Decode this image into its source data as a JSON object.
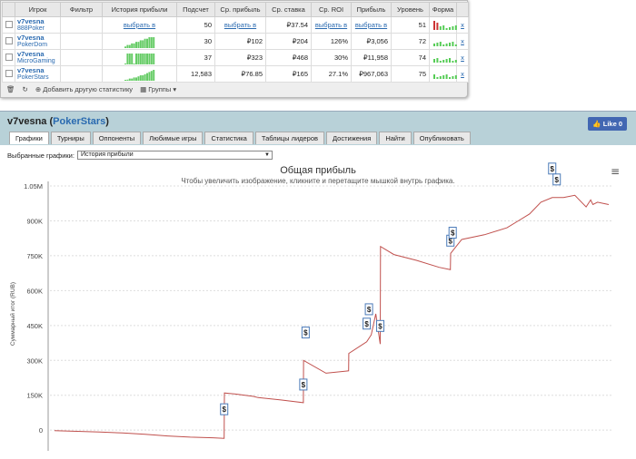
{
  "table": {
    "headers": [
      "Игрок",
      "Фильтр",
      "История прибыли",
      "Подсчет",
      "Ср. прибыль",
      "Ср. ставка",
      "Ср. ROI",
      "Прибыль",
      "Уровень",
      "Форма"
    ],
    "rows": [
      {
        "player": "v7vesna",
        "room": "888Poker",
        "filter": "выбрать в",
        "count": "50",
        "avg_profit": "",
        "avg_stake": "₽37.54",
        "roi": "",
        "profit": "",
        "level": "51",
        "history": [
          0,
          0,
          0,
          0,
          0,
          0,
          0,
          0,
          0,
          0,
          0,
          0,
          0,
          0
        ],
        "form": "red-green",
        "remove": "x"
      },
      {
        "player": "v7vesna",
        "room": "PokerDom",
        "filter": "",
        "count": "30",
        "avg_profit": "₽102",
        "avg_stake": "₽204",
        "roi": "126%",
        "profit": "₽3,056",
        "level": "72",
        "history": [
          1,
          2,
          2,
          3,
          3,
          4,
          4,
          5,
          5,
          6,
          6,
          7,
          7,
          7
        ],
        "form": "green",
        "remove": "x"
      },
      {
        "player": "v7vesna",
        "room": "MicroGaming",
        "filter": "",
        "count": "37",
        "avg_profit": "₽323",
        "avg_stake": "₽468",
        "roi": "30%",
        "profit": "₽11,958",
        "level": "74",
        "history": [
          0,
          1,
          1,
          1,
          0,
          1,
          1,
          1,
          1,
          1,
          1,
          1,
          1,
          1
        ],
        "form": "green",
        "remove": "x"
      },
      {
        "player": "v7vesna",
        "room": "PokerStars",
        "filter": "",
        "count": "12,583",
        "avg_profit": "₽76.85",
        "avg_stake": "₽165",
        "roi": "27.1%",
        "profit": "₽967,063",
        "level": "75",
        "history": [
          0,
          1,
          2,
          2,
          3,
          3,
          4,
          5,
          5,
          6,
          7,
          8,
          9,
          10
        ],
        "form": "green",
        "remove": "x"
      }
    ],
    "row0_link": "выбрать в"
  },
  "toolbar": {
    "add_label": "Добавить другую статистику",
    "groups_label": "Группы"
  },
  "header": {
    "name": "v7vesna",
    "room": "PokerStars",
    "like": "Like 0"
  },
  "tabs": [
    "Графики",
    "Турниры",
    "Оппоненты",
    "Любимые игры",
    "Статистика",
    "Таблицы лидеров",
    "Достижения",
    "Найти",
    "Опубликовать"
  ],
  "select": {
    "label": "Выбранные графики:",
    "value": "История прибыли"
  },
  "chart_data": {
    "type": "line",
    "title": "Общая прибыль",
    "subtitle": "Чтобы увеличить изображение, кликните и перетащите мышкой внутрь графика.",
    "ylabel": "Суммарный итог (RUB)",
    "ylim": [
      -50000,
      1050000
    ],
    "yticks": [
      0,
      150000,
      300000,
      450000,
      600000,
      750000,
      900000,
      1050000
    ],
    "yticklabels": [
      "0",
      "150K",
      "300K",
      "450K",
      "600K",
      "750K",
      "900K",
      "1.05M"
    ],
    "x": [
      0,
      100,
      200,
      300,
      400,
      500,
      600,
      700,
      750,
      751,
      800,
      880,
      900,
      1000,
      1100,
      1101,
      1200,
      1300,
      1301,
      1380,
      1400,
      1420,
      1440,
      1441,
      1500,
      1600,
      1700,
      1750,
      1751,
      1800,
      1900,
      2000,
      2050,
      2100,
      2150,
      2200,
      2250,
      2300,
      2350,
      2370,
      2380,
      2400,
      2450
    ],
    "y": [
      -2000,
      -5000,
      -8000,
      -12000,
      -18000,
      -25000,
      -30000,
      -33000,
      -35000,
      160000,
      155000,
      145000,
      140000,
      130000,
      118000,
      300000,
      245000,
      255000,
      330000,
      380000,
      410000,
      500000,
      370000,
      790000,
      755000,
      730000,
      700000,
      690000,
      760000,
      820000,
      840000,
      870000,
      900000,
      930000,
      980000,
      1000000,
      1000000,
      1010000,
      960000,
      990000,
      970000,
      980000,
      970000
    ],
    "markers": [
      750,
      1100,
      1110,
      1380,
      1390,
      1440,
      1750,
      1760,
      2200,
      2220
    ],
    "line_color": "#c0504d"
  }
}
